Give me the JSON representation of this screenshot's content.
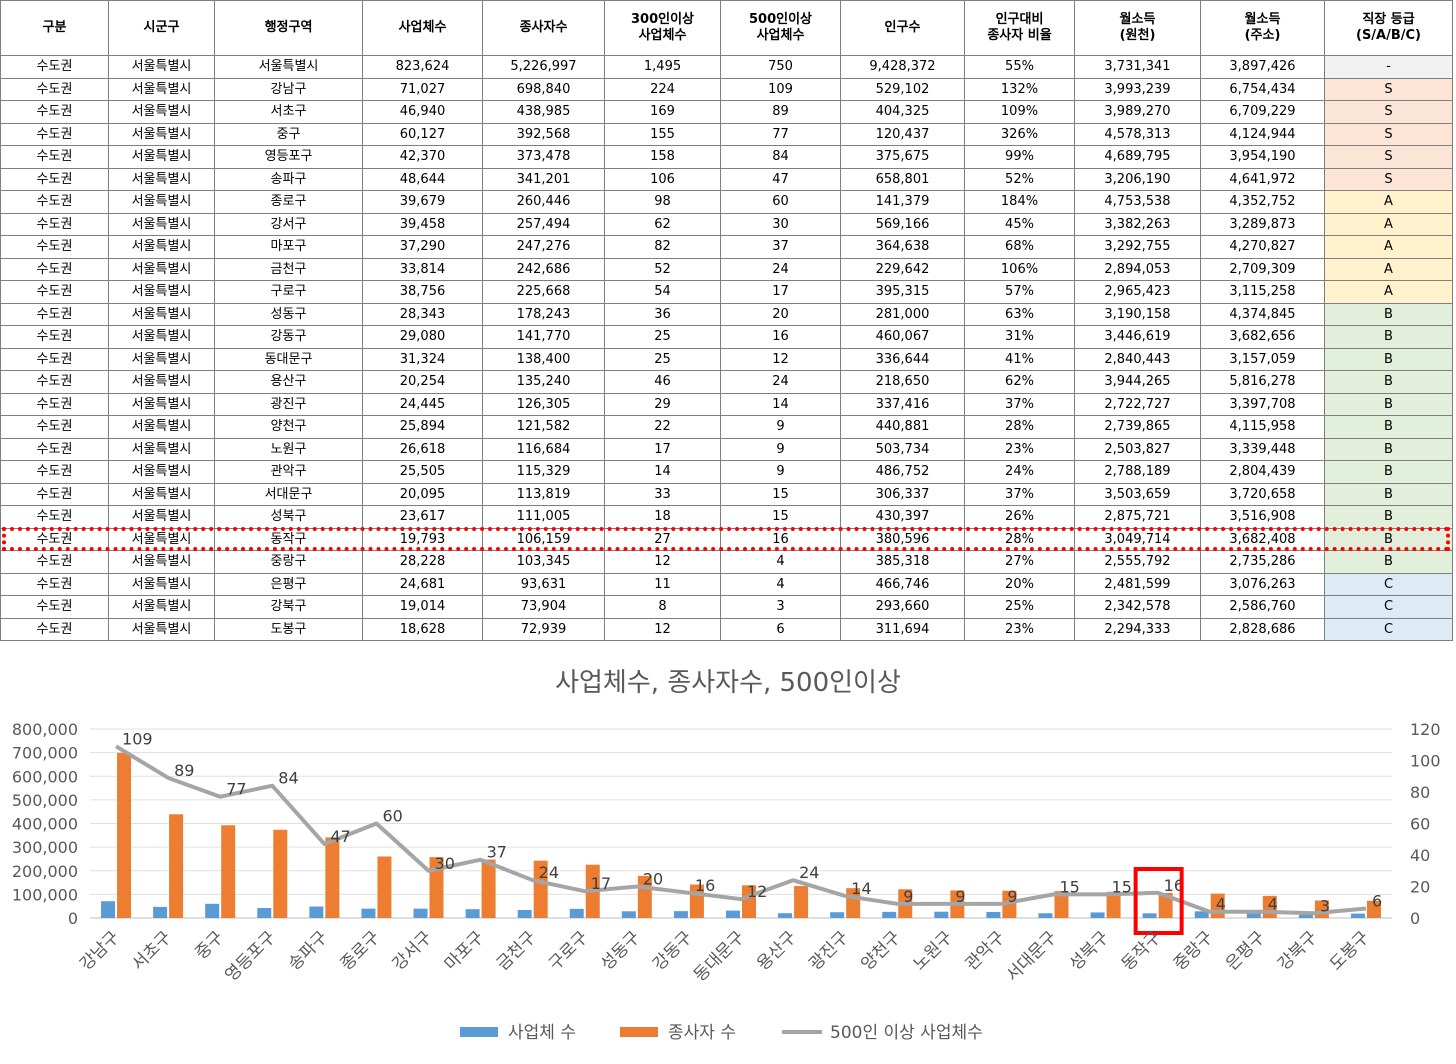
{
  "table": {
    "headers": [
      "구분",
      "시군구",
      "행정구역",
      "사업체수",
      "종사자수",
      "300인이상\n사업체수",
      "500인이상\n사업체수",
      "인구수",
      "인구대비\n종사자 비율",
      "월소득\n(원천)",
      "월소득\n(주소)",
      "직장 등급\n(S/A/B/C)"
    ],
    "rows": [
      [
        "수도권",
        "서울특별시",
        "서울특별시",
        "823,624",
        "5,226,997",
        "1,495",
        "750",
        "9,428,372",
        "55%",
        "3,731,341",
        "3,897,426",
        "-"
      ],
      [
        "수도권",
        "서울특별시",
        "강남구",
        "71,027",
        "698,840",
        "224",
        "109",
        "529,102",
        "132%",
        "3,993,239",
        "6,754,434",
        "S"
      ],
      [
        "수도권",
        "서울특별시",
        "서초구",
        "46,940",
        "438,985",
        "169",
        "89",
        "404,325",
        "109%",
        "3,989,270",
        "6,709,229",
        "S"
      ],
      [
        "수도권",
        "서울특별시",
        "중구",
        "60,127",
        "392,568",
        "155",
        "77",
        "120,437",
        "326%",
        "4,578,313",
        "4,124,944",
        "S"
      ],
      [
        "수도권",
        "서울특별시",
        "영등포구",
        "42,370",
        "373,478",
        "158",
        "84",
        "375,675",
        "99%",
        "4,689,795",
        "3,954,190",
        "S"
      ],
      [
        "수도권",
        "서울특별시",
        "송파구",
        "48,644",
        "341,201",
        "106",
        "47",
        "658,801",
        "52%",
        "3,206,190",
        "4,641,972",
        "S"
      ],
      [
        "수도권",
        "서울특별시",
        "종로구",
        "39,679",
        "260,446",
        "98",
        "60",
        "141,379",
        "184%",
        "4,753,538",
        "4,352,752",
        "A"
      ],
      [
        "수도권",
        "서울특별시",
        "강서구",
        "39,458",
        "257,494",
        "62",
        "30",
        "569,166",
        "45%",
        "3,382,263",
        "3,289,873",
        "A"
      ],
      [
        "수도권",
        "서울특별시",
        "마포구",
        "37,290",
        "247,276",
        "82",
        "37",
        "364,638",
        "68%",
        "3,292,755",
        "4,270,827",
        "A"
      ],
      [
        "수도권",
        "서울특별시",
        "금천구",
        "33,814",
        "242,686",
        "52",
        "24",
        "229,642",
        "106%",
        "2,894,053",
        "2,709,309",
        "A"
      ],
      [
        "수도권",
        "서울특별시",
        "구로구",
        "38,756",
        "225,668",
        "54",
        "17",
        "395,315",
        "57%",
        "2,965,423",
        "3,115,258",
        "A"
      ],
      [
        "수도권",
        "서울특별시",
        "성동구",
        "28,343",
        "178,243",
        "36",
        "20",
        "281,000",
        "63%",
        "3,190,158",
        "4,374,845",
        "B"
      ],
      [
        "수도권",
        "서울특별시",
        "강동구",
        "29,080",
        "141,770",
        "25",
        "16",
        "460,067",
        "31%",
        "3,446,619",
        "3,682,656",
        "B"
      ],
      [
        "수도권",
        "서울특별시",
        "동대문구",
        "31,324",
        "138,400",
        "25",
        "12",
        "336,644",
        "41%",
        "2,840,443",
        "3,157,059",
        "B"
      ],
      [
        "수도권",
        "서울특별시",
        "용산구",
        "20,254",
        "135,240",
        "46",
        "24",
        "218,650",
        "62%",
        "3,944,265",
        "5,816,278",
        "B"
      ],
      [
        "수도권",
        "서울특별시",
        "광진구",
        "24,445",
        "126,305",
        "29",
        "14",
        "337,416",
        "37%",
        "2,722,727",
        "3,397,708",
        "B"
      ],
      [
        "수도권",
        "서울특별시",
        "양천구",
        "25,894",
        "121,582",
        "22",
        "9",
        "440,881",
        "28%",
        "2,739,865",
        "4,115,958",
        "B"
      ],
      [
        "수도권",
        "서울특별시",
        "노원구",
        "26,618",
        "116,684",
        "17",
        "9",
        "503,734",
        "23%",
        "2,503,827",
        "3,339,448",
        "B"
      ],
      [
        "수도권",
        "서울특별시",
        "관악구",
        "25,505",
        "115,329",
        "14",
        "9",
        "486,752",
        "24%",
        "2,788,189",
        "2,804,439",
        "B"
      ],
      [
        "수도권",
        "서울특별시",
        "서대문구",
        "20,095",
        "113,819",
        "33",
        "15",
        "306,337",
        "37%",
        "3,503,659",
        "3,720,658",
        "B"
      ],
      [
        "수도권",
        "서울특별시",
        "성북구",
        "23,617",
        "111,005",
        "18",
        "15",
        "430,397",
        "26%",
        "2,875,721",
        "3,516,908",
        "B"
      ],
      [
        "수도권",
        "서울특별시",
        "동작구",
        "19,793",
        "106,159",
        "27",
        "16",
        "380,596",
        "28%",
        "3,049,714",
        "3,682,408",
        "B"
      ],
      [
        "수도권",
        "서울특별시",
        "중랑구",
        "28,228",
        "103,345",
        "12",
        "4",
        "385,318",
        "27%",
        "2,555,792",
        "2,735,286",
        "B"
      ],
      [
        "수도권",
        "서울특별시",
        "은평구",
        "24,681",
        "93,631",
        "11",
        "4",
        "466,746",
        "20%",
        "2,481,599",
        "3,076,263",
        "C"
      ],
      [
        "수도권",
        "서울특별시",
        "강북구",
        "19,014",
        "73,904",
        "8",
        "3",
        "293,660",
        "25%",
        "2,342,578",
        "2,586,760",
        "C"
      ],
      [
        "수도권",
        "서울특별시",
        "도봉구",
        "18,628",
        "72,939",
        "12",
        "6",
        "311,694",
        "23%",
        "2,294,333",
        "2,828,686",
        "C"
      ]
    ],
    "highlighted_row": "동작구"
  },
  "colors": {
    "grade_S": "#fce4d6",
    "grade_A": "#fff2cc",
    "grade_B": "#e2efda",
    "grade_C": "#ddebf7",
    "bar_businesses": "#5b9bd5",
    "bar_employees": "#ed7d31",
    "line_500": "#a5a5a5",
    "highlight": "#ff0000"
  },
  "chart_data": {
    "type": "bar",
    "title": "사업체수, 종사자수, 500인이상",
    "categories": [
      "강남구",
      "서초구",
      "중구",
      "영등포구",
      "송파구",
      "종로구",
      "강서구",
      "마포구",
      "금천구",
      "구로구",
      "성동구",
      "강동구",
      "동대문구",
      "용산구",
      "광진구",
      "양천구",
      "노원구",
      "관악구",
      "서대문구",
      "성북구",
      "동작구",
      "중랑구",
      "은평구",
      "강북구",
      "도봉구"
    ],
    "series": [
      {
        "name": "사업체 수",
        "type": "bar",
        "axis": "left",
        "values": [
          71027,
          46940,
          60127,
          42370,
          48644,
          39679,
          39458,
          37290,
          33814,
          38756,
          28343,
          29080,
          31324,
          20254,
          24445,
          25894,
          26618,
          25505,
          20095,
          23617,
          19793,
          28228,
          24681,
          19014,
          18628
        ]
      },
      {
        "name": "종사자 수",
        "type": "bar",
        "axis": "left",
        "values": [
          698840,
          438985,
          392568,
          373478,
          341201,
          260446,
          257494,
          247276,
          242686,
          225668,
          178243,
          141770,
          138400,
          135240,
          126305,
          121582,
          116684,
          115329,
          113819,
          111005,
          106159,
          103345,
          93631,
          73904,
          72939
        ]
      },
      {
        "name": "500인 이상 사업체수",
        "type": "line",
        "axis": "right",
        "values": [
          109,
          89,
          77,
          84,
          47,
          60,
          30,
          37,
          24,
          17,
          20,
          16,
          12,
          24,
          14,
          9,
          9,
          9,
          15,
          15,
          16,
          4,
          4,
          3,
          6
        ],
        "data_labels": [
          "109",
          "89",
          "77",
          "84",
          "47",
          "60",
          "30",
          "37",
          "24",
          "17",
          "20",
          "16",
          "12",
          "24",
          "14",
          "9",
          "9",
          "9",
          "15",
          "15",
          "16",
          "4",
          "4",
          "3",
          "6"
        ]
      }
    ],
    "y_left": {
      "min": 0,
      "max": 800000,
      "ticks": [
        "0",
        "100,000",
        "200,000",
        "300,000",
        "400,000",
        "500,000",
        "600,000",
        "700,000",
        "800,000"
      ]
    },
    "y_right": {
      "min": 0,
      "max": 120,
      "ticks": [
        "0",
        "20",
        "40",
        "60",
        "80",
        "100",
        "120"
      ]
    },
    "grid": true,
    "legend_position": "bottom",
    "highlighted_category": "동작구"
  }
}
